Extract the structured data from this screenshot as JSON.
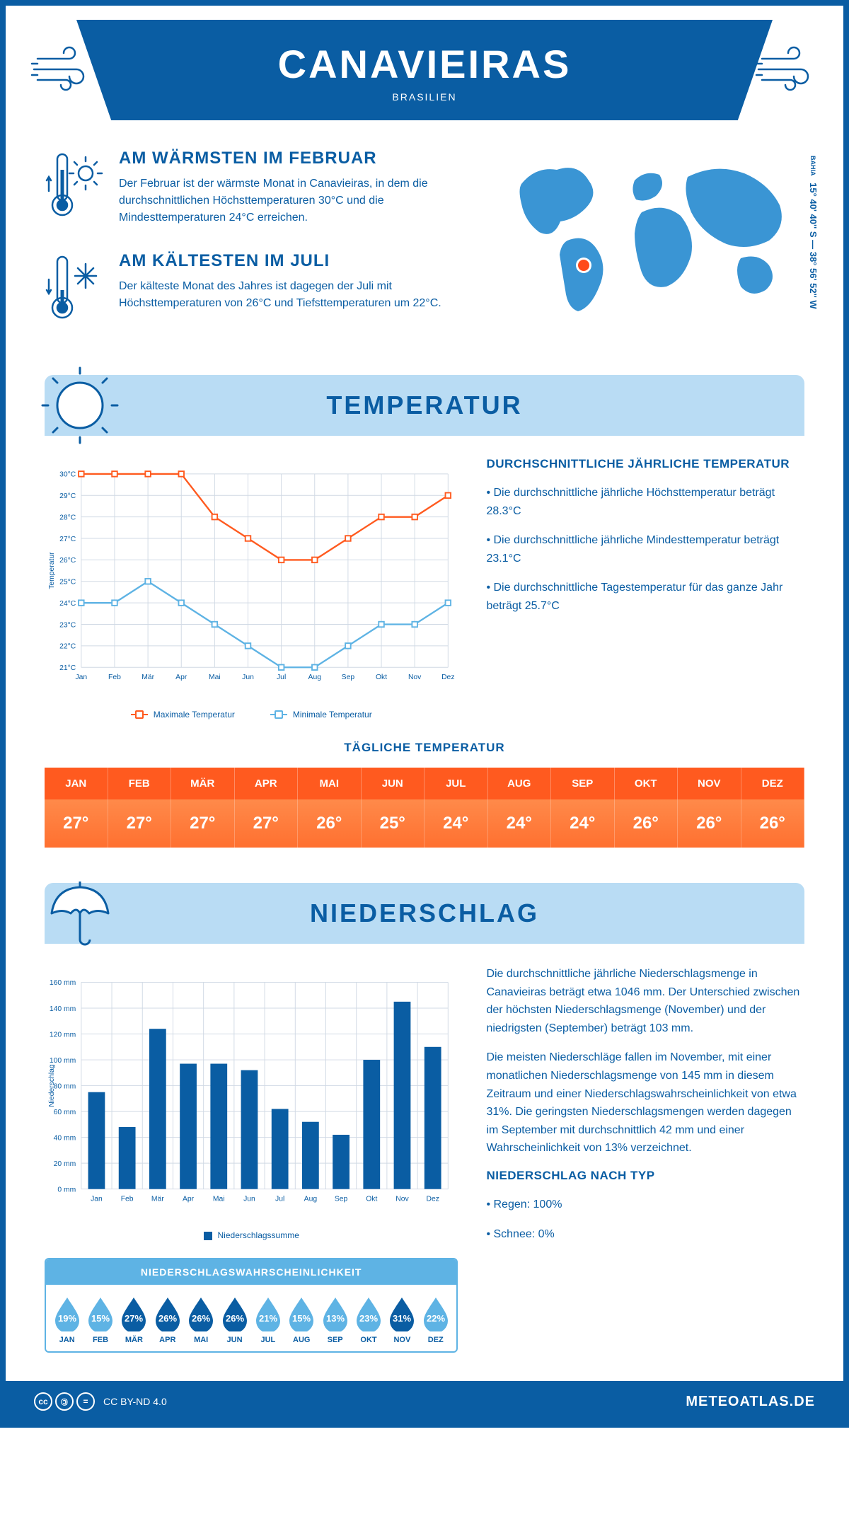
{
  "header": {
    "city": "CANAVIEIRAS",
    "country": "BRASILIEN"
  },
  "coords": {
    "region": "BAHIA",
    "text": "15° 40' 40'' S — 38° 56' 52'' W"
  },
  "warmest": {
    "title": "AM WÄRMSTEN IM FEBRUAR",
    "body": "Der Februar ist der wärmste Monat in Canavieiras, in dem die durchschnittlichen Höchsttemperaturen 30°C und die Mindesttemperaturen 24°C erreichen."
  },
  "coldest": {
    "title": "AM KÄLTESTEN IM JULI",
    "body": "Der kälteste Monat des Jahres ist dagegen der Juli mit Höchsttemperaturen von 26°C und Tiefsttemperaturen um 22°C."
  },
  "section_temp": "TEMPERATUR",
  "section_precip": "NIEDERSCHLAG",
  "temp_side": {
    "heading": "DURCHSCHNITTLICHE JÄHRLICHE TEMPERATUR",
    "p1": "• Die durchschnittliche jährliche Höchsttemperatur beträgt 28.3°C",
    "p2": "• Die durchschnittliche jährliche Mindesttemperatur beträgt 23.1°C",
    "p3": "• Die durchschnittliche Tagestemperatur für das ganze Jahr beträgt 25.7°C"
  },
  "line_chart": {
    "months": [
      "Jan",
      "Feb",
      "Mär",
      "Apr",
      "Mai",
      "Jun",
      "Jul",
      "Aug",
      "Sep",
      "Okt",
      "Nov",
      "Dez"
    ],
    "y_min": 21,
    "y_max": 30,
    "y_step": 1,
    "y_axis_title": "Temperatur",
    "max_series": {
      "label": "Maximale Temperatur",
      "color": "#ff5a1f",
      "values": [
        30,
        30,
        30,
        30,
        28,
        27,
        26,
        26,
        27,
        28,
        28,
        29
      ]
    },
    "min_series": {
      "label": "Minimale Temperatur",
      "color": "#5eb3e4",
      "values": [
        24,
        24,
        25,
        24,
        23,
        22,
        21,
        21,
        22,
        23,
        23,
        24
      ]
    },
    "grid_color": "#d0d9e4"
  },
  "daily_table": {
    "title": "TÄGLICHE TEMPERATUR",
    "months": [
      "JAN",
      "FEB",
      "MÄR",
      "APR",
      "MAI",
      "JUN",
      "JUL",
      "AUG",
      "SEP",
      "OKT",
      "NOV",
      "DEZ"
    ],
    "values": [
      "27°",
      "27°",
      "27°",
      "27°",
      "26°",
      "25°",
      "24°",
      "24°",
      "24°",
      "26°",
      "26°",
      "26°"
    ]
  },
  "bar_chart": {
    "months": [
      "Jan",
      "Feb",
      "Mär",
      "Apr",
      "Mai",
      "Jun",
      "Jul",
      "Aug",
      "Sep",
      "Okt",
      "Nov",
      "Dez"
    ],
    "values": [
      75,
      48,
      124,
      97,
      97,
      92,
      62,
      52,
      42,
      100,
      145,
      110
    ],
    "y_max": 160,
    "y_step": 20,
    "y_axis_title": "Niederschlag",
    "bar_color": "#0a5da3",
    "grid_color": "#d0d9e4",
    "legend": "Niederschlagssumme"
  },
  "precip_text": {
    "p1": "Die durchschnittliche jährliche Niederschlagsmenge in Canavieiras beträgt etwa 1046 mm. Der Unterschied zwischen der höchsten Niederschlagsmenge (November) und der niedrigsten (September) beträgt 103 mm.",
    "p2": "Die meisten Niederschläge fallen im November, mit einer monatlichen Niederschlagsmenge von 145 mm in diesem Zeitraum und einer Niederschlagswahrscheinlichkeit von etwa 31%. Die geringsten Niederschlagsmengen werden dagegen im September mit durchschnittlich 42 mm und einer Wahrscheinlichkeit von 13% verzeichnet.",
    "h2": "NIEDERSCHLAG NACH TYP",
    "p3": "• Regen: 100%",
    "p4": "• Schnee: 0%"
  },
  "prob": {
    "title": "NIEDERSCHLAGSWAHRSCHEINLICHKEIT",
    "months": [
      "JAN",
      "FEB",
      "MÄR",
      "APR",
      "MAI",
      "JUN",
      "JUL",
      "AUG",
      "SEP",
      "OKT",
      "NOV",
      "DEZ"
    ],
    "values": [
      19,
      15,
      27,
      26,
      26,
      26,
      21,
      15,
      13,
      23,
      31,
      22
    ],
    "threshold_dark": 24,
    "color_light": "#5eb3e4",
    "color_dark": "#0a5da3"
  },
  "footer": {
    "license": "CC BY-ND 4.0",
    "site": "METEOATLAS.DE"
  }
}
